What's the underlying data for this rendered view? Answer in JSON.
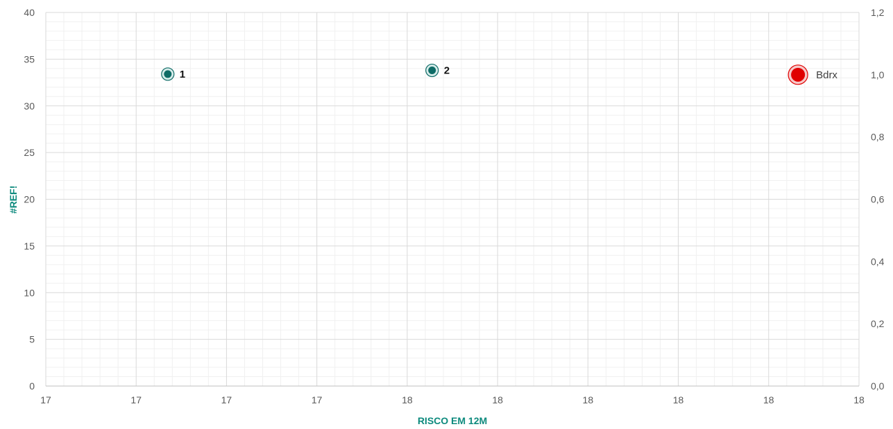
{
  "chart_data": {
    "type": "scatter",
    "xlabel": "RISCO EM 12M",
    "ylabel": "#REF!",
    "x_ticks": [
      "17",
      "17",
      "17",
      "17",
      "18",
      "18",
      "18",
      "18",
      "18",
      "18"
    ],
    "y_ticks": [
      "0",
      "5",
      "10",
      "15",
      "20",
      "25",
      "30",
      "35",
      "40"
    ],
    "y2_ticks": [
      "0,0",
      "0,2",
      "0,4",
      "0,6",
      "0,8",
      "1,0",
      "1,2"
    ],
    "ylim": [
      0,
      40
    ],
    "y2lim": [
      0,
      1.2
    ],
    "grid": true,
    "points": [
      {
        "label": "1",
        "x": 17.3,
        "y": 33.4,
        "color": "#0e6b66",
        "axis": "left",
        "size": "small"
      },
      {
        "label": "2",
        "x": 17.95,
        "y": 33.8,
        "color": "#0e6b66",
        "axis": "left",
        "size": "small"
      },
      {
        "label": "Bdrx",
        "x": 18.85,
        "y": 1.0,
        "color": "#e00000",
        "axis": "right",
        "size": "large"
      }
    ],
    "colors": {
      "primary_marker": "#0e6b66",
      "highlight_marker": "#e00000",
      "axis_title": "#0d8a7d"
    }
  }
}
